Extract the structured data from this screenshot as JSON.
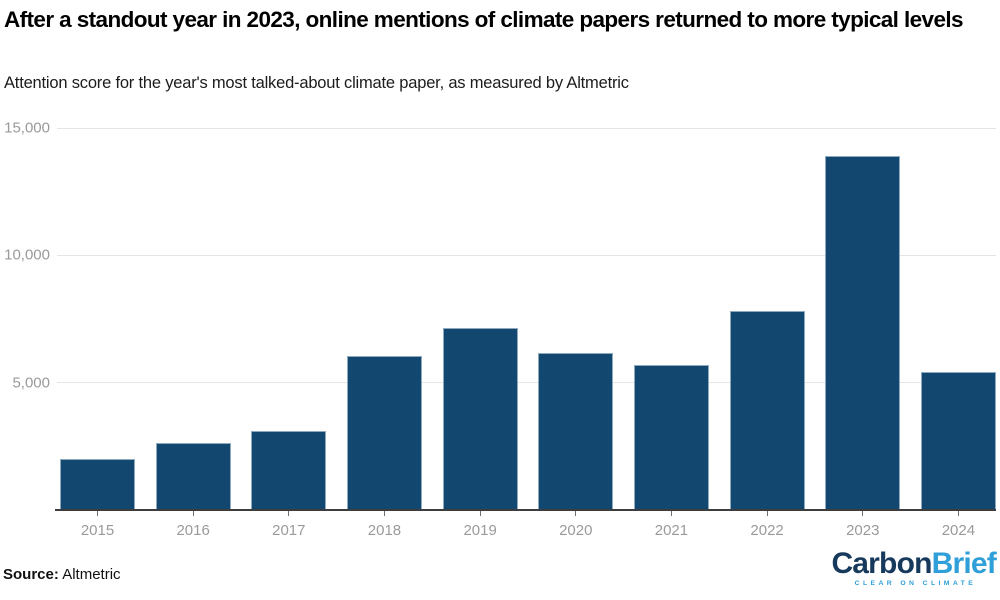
{
  "header": {
    "title": "After a standout year in 2023, online mentions of climate papers returned to more typical levels",
    "subtitle": "Attention score for the year's most talked-about climate paper, as measured by Altmetric"
  },
  "chart_data": {
    "type": "bar",
    "title": "After a standout year in 2023, online mentions of climate papers returned to more typical levels",
    "subtitle": "Attention score for the year's most talked-about climate paper, as measured by Altmetric",
    "categories": [
      "2015",
      "2016",
      "2017",
      "2018",
      "2019",
      "2020",
      "2021",
      "2022",
      "2023",
      "2024"
    ],
    "values": [
      2000,
      2650,
      3100,
      6050,
      7150,
      6150,
      5700,
      7800,
      13900,
      5400
    ],
    "xlabel": "",
    "ylabel": "",
    "ylim": [
      0,
      15000
    ],
    "yticks": [
      5000,
      10000,
      15000
    ],
    "ytick_labels": [
      "5,000",
      "10,000",
      "15,000"
    ],
    "grid": "horizontal gridlines at each ytick",
    "legend": "none",
    "bar_color": "#12476f"
  },
  "footer": {
    "source_label": "Source:",
    "source_value": "Altmetric",
    "logo": {
      "part1": "Carbon",
      "part2": "Brief",
      "tagline": "CLEAR ON CLIMATE"
    }
  },
  "colors": {
    "bar_fill": "#12476f",
    "bar_edge": "#8fa9bf",
    "gridline": "#e5e5e5",
    "axis_line": "#3d3d3d",
    "tick_text": "#9a9a9a",
    "logo_dark_blue": "#16395c",
    "logo_light_blue": "#2e9fd8"
  }
}
